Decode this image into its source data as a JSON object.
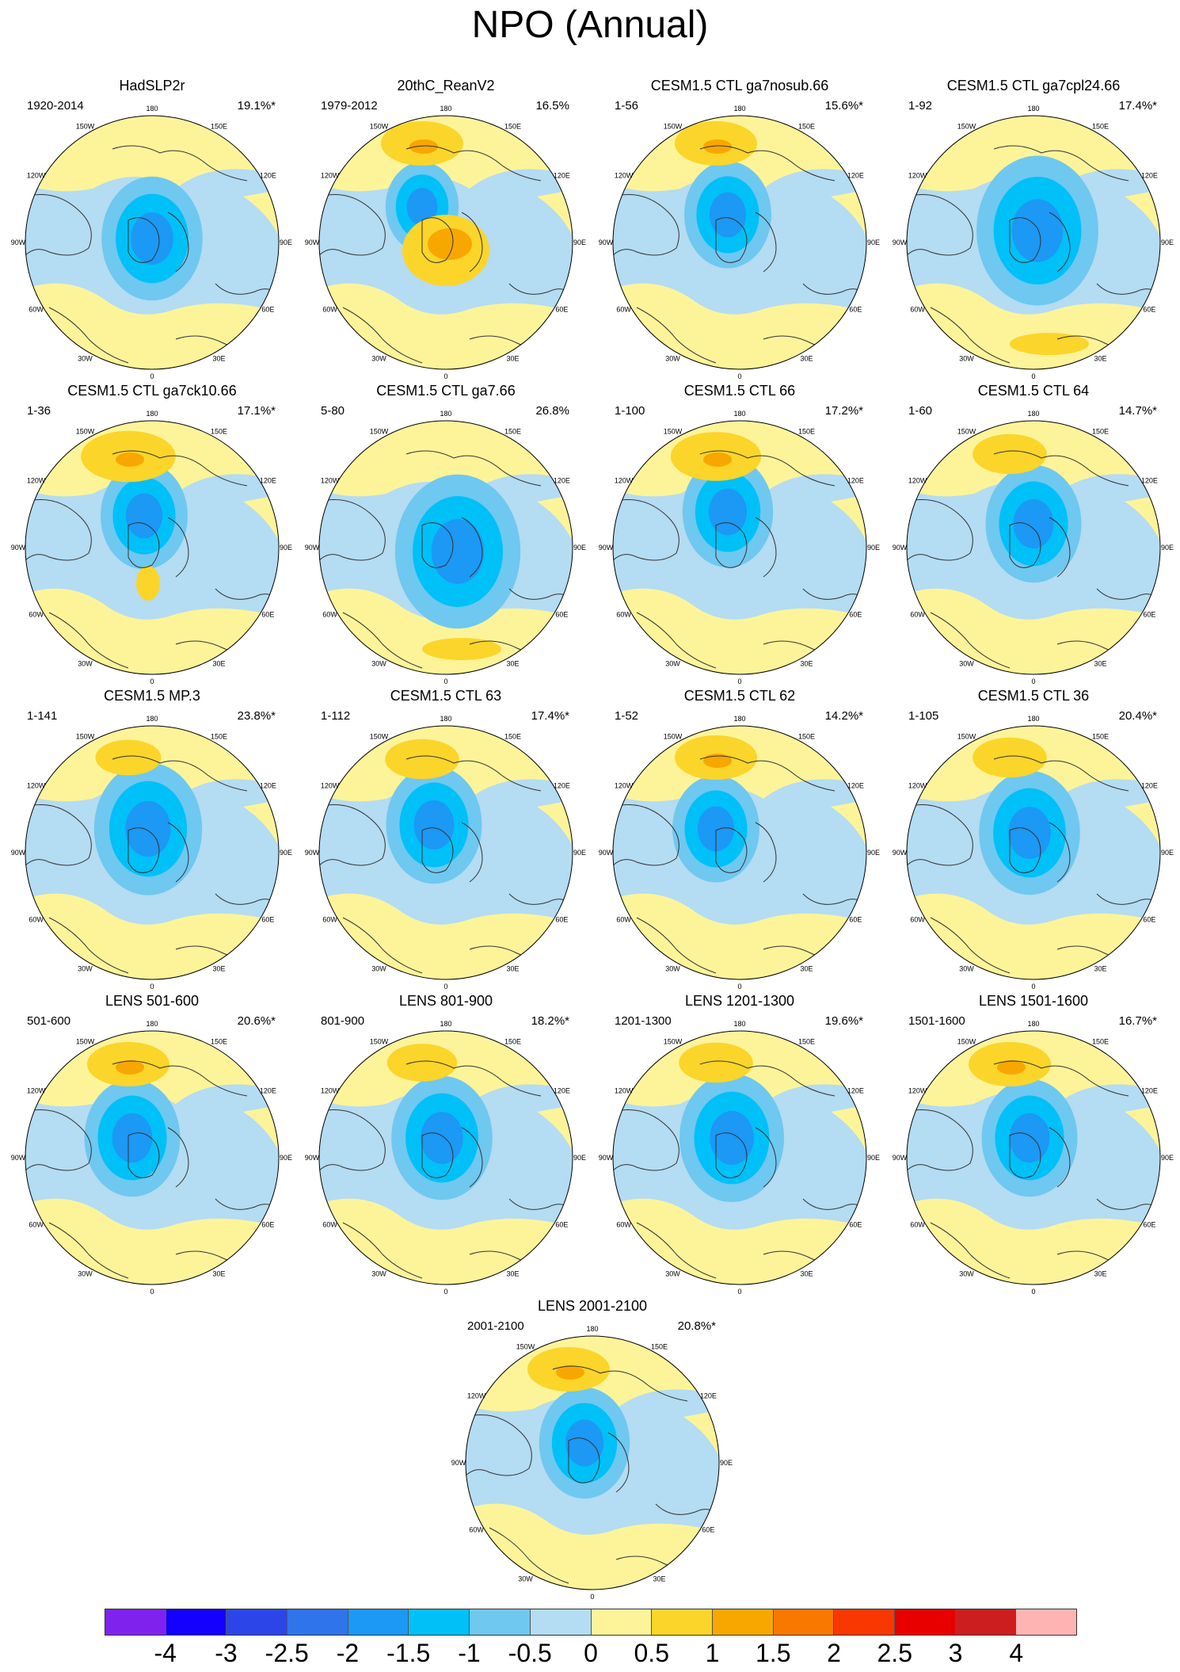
{
  "title": "NPO (Annual)",
  "lon_labels": [
    "180",
    "150E",
    "120E",
    "90E",
    "60E",
    "30E",
    "0",
    "30W",
    "60W",
    "90W",
    "120W",
    "150W"
  ],
  "panels": [
    {
      "title": "HadSLP2r",
      "years": "1920-2014",
      "pct": "19.1%*"
    },
    {
      "title": "20thC_ReanV2",
      "years": "1979-2012",
      "pct": "16.5%"
    },
    {
      "title": "CESM1.5 CTL ga7nosub.66",
      "years": "1-56",
      "pct": "15.6%*"
    },
    {
      "title": "CESM1.5 CTL ga7cpl24.66",
      "years": "1-92",
      "pct": "17.4%*"
    },
    {
      "title": "CESM1.5 CTL ga7ck10.66",
      "years": "1-36",
      "pct": "17.1%*"
    },
    {
      "title": "CESM1.5 CTL ga7.66",
      "years": "5-80",
      "pct": "26.8%"
    },
    {
      "title": "CESM1.5 CTL 66",
      "years": "1-100",
      "pct": "17.2%*"
    },
    {
      "title": "CESM1.5 CTL 64",
      "years": "1-60",
      "pct": "14.7%*"
    },
    {
      "title": "CESM1.5 MP.3",
      "years": "1-141",
      "pct": "23.8%*"
    },
    {
      "title": "CESM1.5 CTL 63",
      "years": "1-112",
      "pct": "17.4%*"
    },
    {
      "title": "CESM1.5 CTL 62",
      "years": "1-52",
      "pct": "14.2%*"
    },
    {
      "title": "CESM1.5 CTL 36",
      "years": "1-105",
      "pct": "20.4%*"
    },
    {
      "title": "LENS 501-600",
      "years": "501-600",
      "pct": "20.6%*"
    },
    {
      "title": "LENS 801-900",
      "years": "801-900",
      "pct": "18.2%*"
    },
    {
      "title": "LENS 1201-1300",
      "years": "1201-1300",
      "pct": "19.6%*"
    },
    {
      "title": "LENS 1501-1600",
      "years": "1501-1600",
      "pct": "16.7%*"
    },
    {
      "title": "LENS 2001-2100",
      "years": "2001-2100",
      "pct": "20.8%*"
    }
  ],
  "colorbar": {
    "colors": [
      "#7f22ee",
      "#1400ff",
      "#2c45e8",
      "#2f74ea",
      "#1c98f5",
      "#00c0f8",
      "#6fc8f0",
      "#b4dcf2",
      "#fdf49a",
      "#fbd52a",
      "#f8a700",
      "#f87800",
      "#f83800",
      "#e80000",
      "#cc1e1e",
      "#ffb4b4"
    ],
    "labels": [
      "-4",
      "-3",
      "-2.5",
      "-2",
      "-1.5",
      "-1",
      "-0.5",
      "0",
      "0.5",
      "1",
      "1.5",
      "2",
      "2.5",
      "3",
      "4"
    ]
  }
}
